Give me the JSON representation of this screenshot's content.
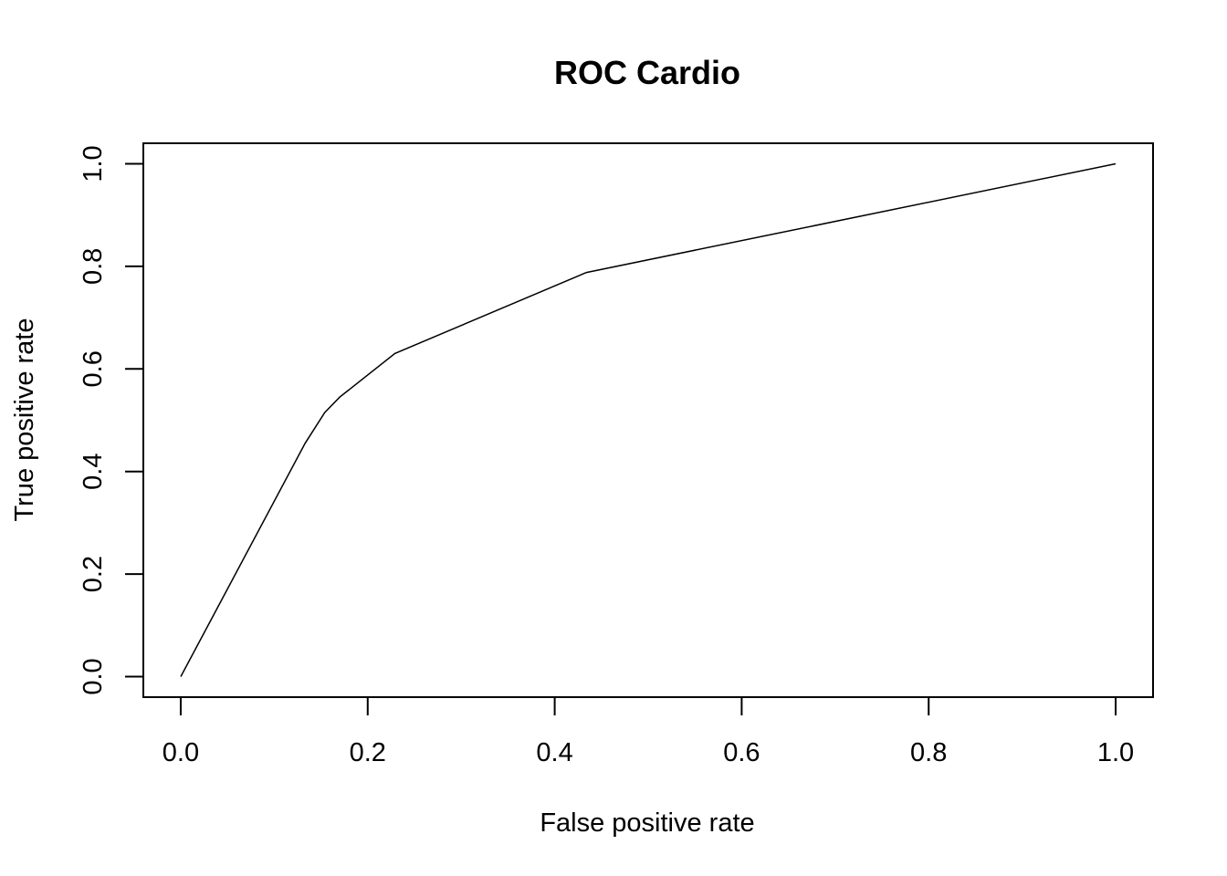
{
  "chart_data": {
    "type": "line",
    "title": "ROC Cardio",
    "xlabel": "False positive rate",
    "ylabel": "True positive rate",
    "xlim": [
      -0.04,
      1.04
    ],
    "ylim": [
      -0.04,
      1.04
    ],
    "xticks": [
      0.0,
      0.2,
      0.4,
      0.6,
      0.8,
      1.0
    ],
    "xtick_labels": [
      "0.0",
      "0.2",
      "0.4",
      "0.6",
      "0.8",
      "1.0"
    ],
    "yticks": [
      0.0,
      0.2,
      0.4,
      0.6,
      0.8,
      1.0
    ],
    "ytick_labels": [
      "0.0",
      "0.2",
      "0.4",
      "0.6",
      "0.8",
      "1.0"
    ],
    "grid": false,
    "series": [
      {
        "color": "#000000",
        "x": [
          0.0,
          0.133,
          0.154,
          0.17,
          0.229,
          0.434,
          1.0
        ],
        "y": [
          0.0,
          0.455,
          0.515,
          0.545,
          0.63,
          0.788,
          1.0
        ]
      }
    ]
  }
}
